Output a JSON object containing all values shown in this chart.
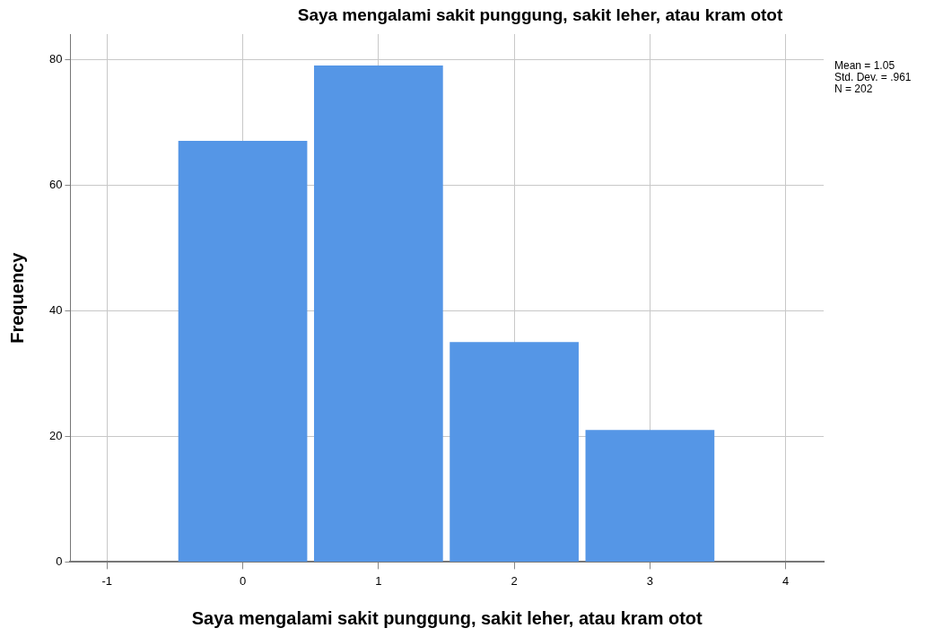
{
  "chart_data": {
    "type": "histogram",
    "title": "Saya mengalami sakit punggung, sakit leher, atau kram otot",
    "xlabel": "Saya mengalami sakit punggung, sakit leher, atau kram otot",
    "ylabel": "Frequency",
    "bins": [
      -0.5,
      0.5,
      1.5,
      2.5,
      3.5
    ],
    "values": [
      67,
      79,
      35,
      21
    ],
    "color": "#5596e6",
    "xlim": [
      -1.27,
      4.28
    ],
    "xticks": [
      -1,
      0,
      1,
      2,
      3,
      4
    ],
    "ylim": [
      0,
      84
    ],
    "yticks": [
      0,
      20,
      40,
      60,
      80
    ],
    "grid": true,
    "annotations": [
      "Mean = 1.05",
      "Std. Dev. = .961",
      "N = 202"
    ]
  }
}
